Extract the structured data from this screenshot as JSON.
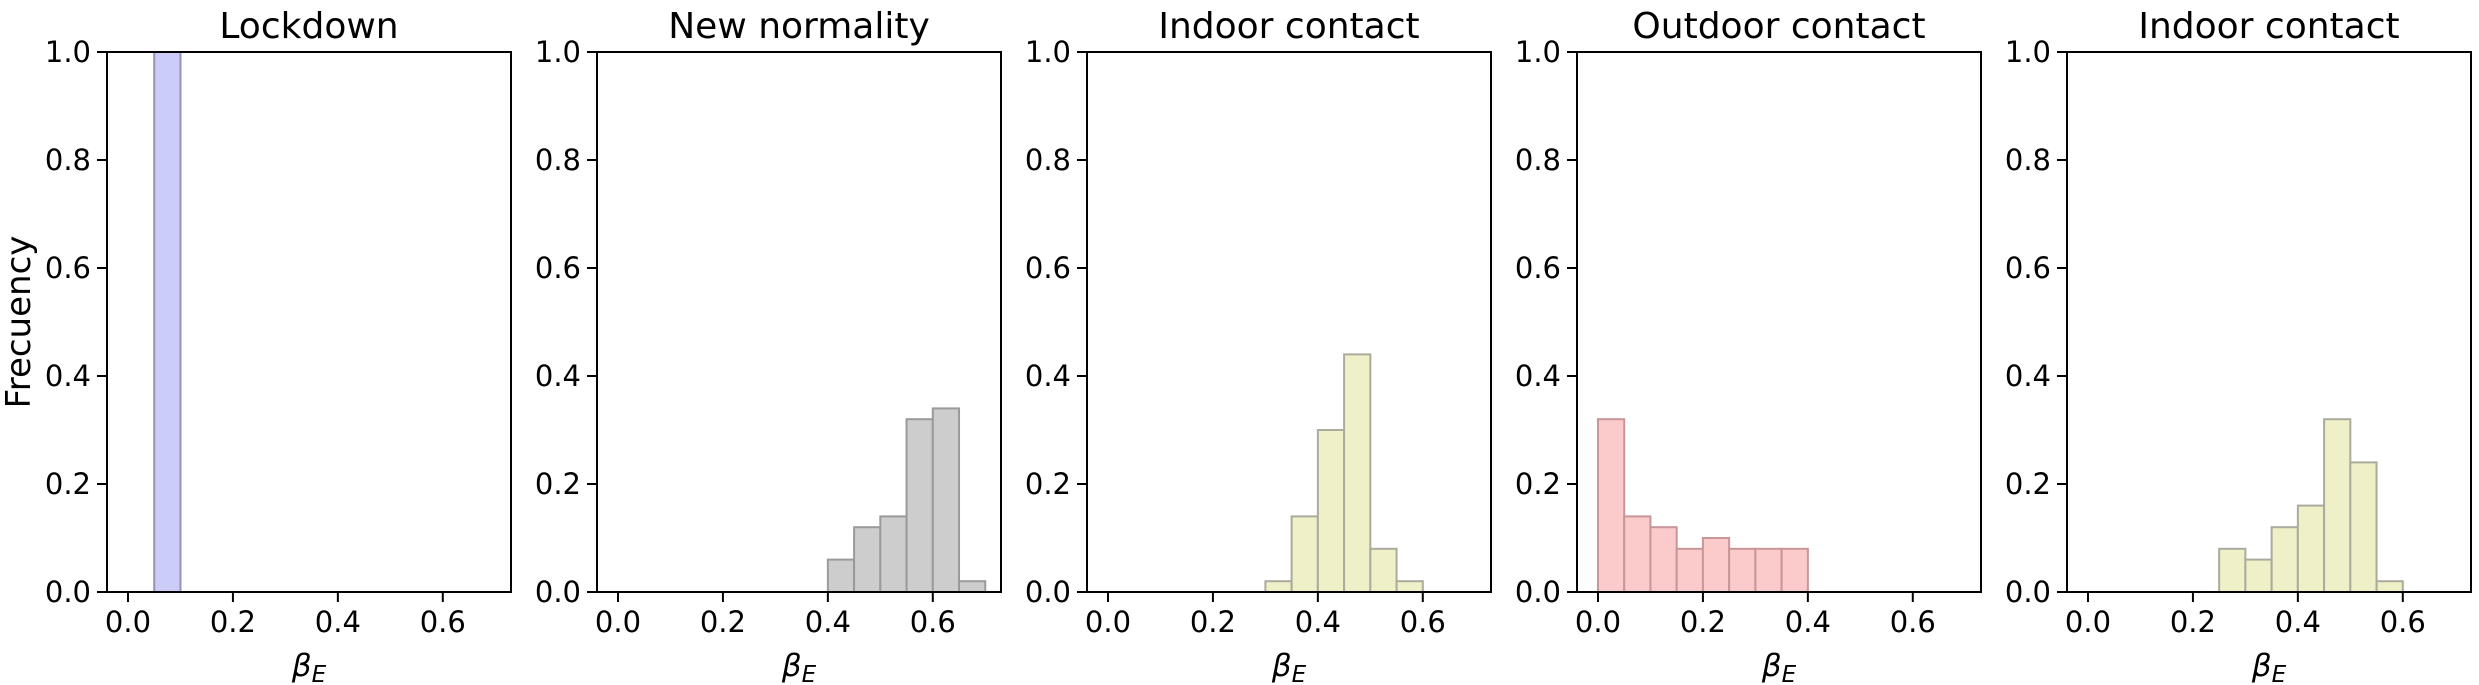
{
  "figure": {
    "ylabel": "Frecuency",
    "xlabel_main": "β",
    "xlabel_sub": "E"
  },
  "chart_data": [
    {
      "type": "histogram",
      "title": "Lockdown",
      "xlabel": "β_E",
      "ylabel": "Frecuency",
      "bin_start": 0.05,
      "bin_width": 0.05,
      "frequencies": [
        1.0
      ],
      "bar_fill": "#ccccf8",
      "bar_edge": "#9393bc",
      "xlim": [
        -0.04,
        0.73
      ],
      "ylim": [
        0,
        1
      ],
      "xticks": [
        0.0,
        0.2,
        0.4,
        0.6
      ],
      "xtick_labels": [
        "0.0",
        "0.2",
        "0.4",
        "0.6"
      ],
      "yticks": [
        0.0,
        0.2,
        0.4,
        0.6,
        0.8,
        1.0
      ],
      "ytick_labels": [
        "0.0",
        "0.2",
        "0.4",
        "0.6",
        "0.8",
        "1.0"
      ],
      "grid": false,
      "legend": null
    },
    {
      "type": "histogram",
      "title": "New normality",
      "xlabel": "β_E",
      "ylabel": "",
      "bin_start": 0.4,
      "bin_width": 0.05,
      "frequencies": [
        0.06,
        0.12,
        0.14,
        0.32,
        0.34,
        0.02
      ],
      "bar_fill": "#cdcdcd",
      "bar_edge": "#9a9a9a",
      "xlim": [
        -0.04,
        0.73
      ],
      "ylim": [
        0,
        1
      ],
      "xticks": [
        0.0,
        0.2,
        0.4,
        0.6
      ],
      "xtick_labels": [
        "0.0",
        "0.2",
        "0.4",
        "0.6"
      ],
      "yticks": [
        0.0,
        0.2,
        0.4,
        0.6,
        0.8,
        1.0
      ],
      "ytick_labels": [
        "0.0",
        "0.2",
        "0.4",
        "0.6",
        "0.8",
        "1.0"
      ],
      "grid": false,
      "legend": null
    },
    {
      "type": "histogram",
      "title": "Indoor contact",
      "xlabel": "β_E",
      "ylabel": "",
      "bin_start": 0.3,
      "bin_width": 0.05,
      "frequencies": [
        0.02,
        0.14,
        0.3,
        0.44,
        0.08,
        0.02
      ],
      "bar_fill": "#efefc8",
      "bar_edge": "#abab9d",
      "xlim": [
        -0.04,
        0.73
      ],
      "ylim": [
        0,
        1
      ],
      "xticks": [
        0.0,
        0.2,
        0.4,
        0.6
      ],
      "xtick_labels": [
        "0.0",
        "0.2",
        "0.4",
        "0.6"
      ],
      "yticks": [
        0.0,
        0.2,
        0.4,
        0.6,
        0.8,
        1.0
      ],
      "ytick_labels": [
        "0.0",
        "0.2",
        "0.4",
        "0.6",
        "0.8",
        "1.0"
      ],
      "grid": false,
      "legend": null
    },
    {
      "type": "histogram",
      "title": "Outdoor contact",
      "xlabel": "β_E",
      "ylabel": "",
      "bin_start": 0.0,
      "bin_width": 0.05,
      "frequencies": [
        0.32,
        0.14,
        0.12,
        0.08,
        0.1,
        0.08,
        0.08,
        0.08
      ],
      "bar_fill": "#fbcbcb",
      "bar_edge": "#c89598",
      "xlim": [
        -0.04,
        0.73
      ],
      "ylim": [
        0,
        1
      ],
      "xticks": [
        0.0,
        0.2,
        0.4,
        0.6
      ],
      "xtick_labels": [
        "0.0",
        "0.2",
        "0.4",
        "0.6"
      ],
      "yticks": [
        0.0,
        0.2,
        0.4,
        0.6,
        0.8,
        1.0
      ],
      "ytick_labels": [
        "0.0",
        "0.2",
        "0.4",
        "0.6",
        "0.8",
        "1.0"
      ],
      "grid": false,
      "legend": null
    },
    {
      "type": "histogram",
      "title": "Indoor contact",
      "xlabel": "β_E",
      "ylabel": "",
      "bin_start": 0.25,
      "bin_width": 0.05,
      "frequencies": [
        0.08,
        0.06,
        0.12,
        0.16,
        0.32,
        0.24,
        0.02
      ],
      "bar_fill": "#efefc8",
      "bar_edge": "#abab9d",
      "xlim": [
        -0.04,
        0.73
      ],
      "ylim": [
        0,
        1
      ],
      "xticks": [
        0.0,
        0.2,
        0.4,
        0.6
      ],
      "xtick_labels": [
        "0.0",
        "0.2",
        "0.4",
        "0.6"
      ],
      "yticks": [
        0.0,
        0.2,
        0.4,
        0.6,
        0.8,
        1.0
      ],
      "ytick_labels": [
        "0.0",
        "0.2",
        "0.4",
        "0.6",
        "0.8",
        "1.0"
      ],
      "grid": false,
      "legend": null
    }
  ]
}
